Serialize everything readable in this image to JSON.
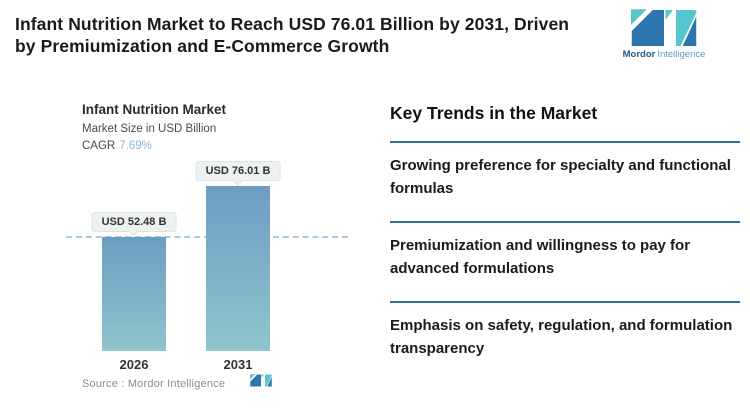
{
  "header": {
    "title_line1": "Infant Nutrition Market to Reach USD 76.01 Billion by 2031, Driven",
    "title_line2": "by Premiumization and E-Commerce Growth",
    "brand": {
      "name_bold": "Mordor",
      "name_light": "Intelligence"
    }
  },
  "chart_data": {
    "type": "bar",
    "title": "Infant Nutrition Market",
    "subtitle": "Market Size in USD Billion",
    "cagr_label": "CAGR",
    "cagr_value": "7.69%",
    "categories": [
      "2026",
      "2031"
    ],
    "values": [
      52.48,
      76.01
    ],
    "value_labels": [
      "USD 52.48 B",
      "USD 76.01 B"
    ],
    "unit": "USD Billion",
    "ylim": [
      0,
      76.01
    ],
    "reference_line_value": 52.48,
    "grid": "off",
    "legend": "none",
    "source": "Source :  Mordor Intelligence"
  },
  "trends": {
    "heading": "Key Trends in the Market",
    "items": [
      "Growing preference for specialty and functional formulas",
      "Premiumization and willingness to pay for advanced formulations",
      "Emphasis on safety, regulation, and formulation transparency"
    ]
  },
  "colors": {
    "title_text": "#1a1a1a",
    "accent_separator": "#2e6f9e",
    "bar_top": "#6d9cc2",
    "bar_bottom": "#8fc5ce",
    "dashed_line": "#a9c6dd",
    "cagr_value": "#8ab6d9",
    "label_box_bg": "#eef1f2",
    "label_box_border": "#dee3e5",
    "source_text": "#8c8c8c",
    "logo_dark": "#2e75ae",
    "logo_teal": "#56c7cd",
    "logo_text_dark": "#1f5c8b",
    "logo_text_light": "#5b9ec9",
    "muted_text": "#4a4a4a",
    "year_text": "#333333"
  }
}
